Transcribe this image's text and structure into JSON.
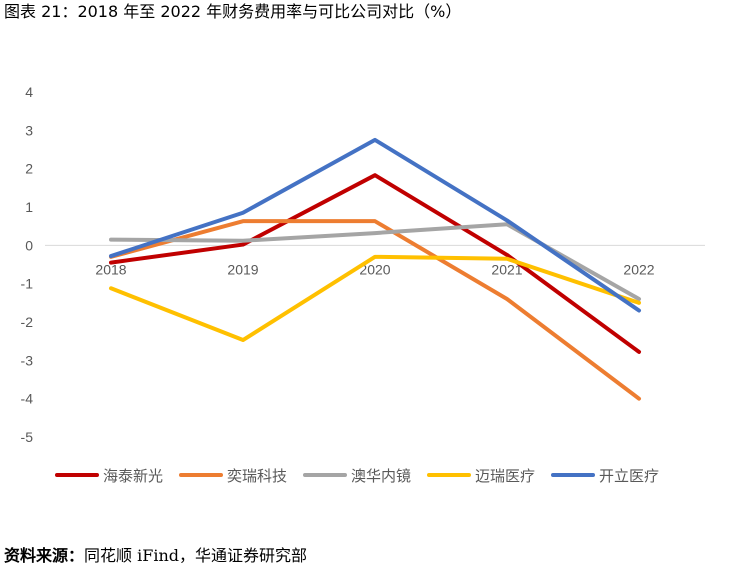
{
  "figure": {
    "title": "图表 21：2018 年至 2022 年财务费用率与可比公司对比（%）",
    "source_label": "资料来源：",
    "source_text": "同花顺 iFind，华通证券研究部"
  },
  "chart_data": {
    "type": "line",
    "title": "",
    "xlabel": "",
    "ylabel": "",
    "ylim": [
      -5,
      4
    ],
    "yticks": [
      "4",
      "3",
      "2",
      "1",
      "0",
      "-1",
      "-2",
      "-3",
      "-4",
      "-5"
    ],
    "categories": [
      "2018",
      "2019",
      "2020",
      "2021",
      "2022"
    ],
    "grid": false,
    "legend_position": "bottom",
    "series": [
      {
        "name": "海泰新光",
        "color": "#C00000",
        "values": [
          -0.45,
          0.02,
          1.83,
          -0.25,
          -2.78
        ]
      },
      {
        "name": "奕瑞科技",
        "color": "#ED7D31",
        "values": [
          -0.3,
          0.63,
          0.63,
          -1.4,
          -4.0
        ]
      },
      {
        "name": "澳华内镜",
        "color": "#A5A5A5",
        "values": [
          0.15,
          0.12,
          0.32,
          0.55,
          -1.4
        ]
      },
      {
        "name": "迈瑞医疗",
        "color": "#FFC000",
        "values": [
          -1.12,
          -2.47,
          -0.3,
          -0.35,
          -1.5
        ]
      },
      {
        "name": "开立医疗",
        "color": "#4472C4",
        "values": [
          -0.28,
          0.85,
          2.75,
          0.65,
          -1.7
        ]
      }
    ]
  }
}
